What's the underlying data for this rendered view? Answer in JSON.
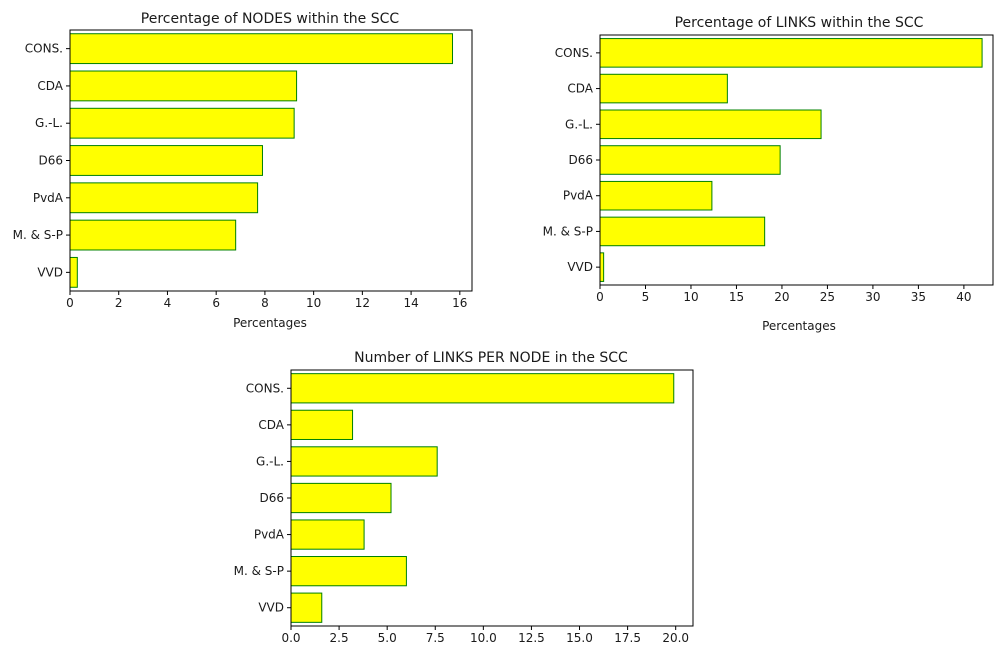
{
  "chart_data": [
    {
      "type": "bar",
      "orientation": "horizontal",
      "title": "Percentage of NODES within the SCC",
      "xlabel": "Percentages",
      "ylabel": "",
      "categories": [
        "CONS.",
        "CDA",
        "G.-L.",
        "D66",
        "PvdA",
        "M. & S-P",
        "VVD"
      ],
      "values": [
        15.7,
        9.3,
        9.2,
        7.9,
        7.7,
        6.8,
        0.3
      ],
      "xlim": [
        0,
        16.5
      ],
      "xticks": [
        0,
        2,
        4,
        6,
        8,
        10,
        12,
        14,
        16
      ],
      "xtick_labels": [
        "0",
        "2",
        "4",
        "6",
        "8",
        "10",
        "12",
        "14",
        "16"
      ],
      "grid": false,
      "bar_color": "#ffff00",
      "edge_color": "#008000"
    },
    {
      "type": "bar",
      "orientation": "horizontal",
      "title": "Percentage of LINKS within the SCC",
      "xlabel": "Percentages",
      "ylabel": "",
      "categories": [
        "CONS.",
        "CDA",
        "G.-L.",
        "D66",
        "PvdA",
        "M. & S-P",
        "VVD"
      ],
      "values": [
        42.0,
        14.0,
        24.3,
        19.8,
        12.3,
        18.1,
        0.4
      ],
      "xlim": [
        0,
        43.2
      ],
      "xticks": [
        0,
        5,
        10,
        15,
        20,
        25,
        30,
        35,
        40
      ],
      "xtick_labels": [
        "0",
        "5",
        "10",
        "15",
        "20",
        "25",
        "30",
        "35",
        "40"
      ],
      "grid": false,
      "bar_color": "#ffff00",
      "edge_color": "#008000"
    },
    {
      "type": "bar",
      "orientation": "horizontal",
      "title": "Number of LINKS PER NODE in the SCC",
      "xlabel": "",
      "ylabel": "",
      "categories": [
        "CONS.",
        "CDA",
        "G.-L.",
        "D66",
        "PvdA",
        "M. & S-P",
        "VVD"
      ],
      "values": [
        19.9,
        3.2,
        7.6,
        5.2,
        3.8,
        6.0,
        1.6
      ],
      "xlim": [
        0,
        20.9
      ],
      "xticks": [
        0,
        2.5,
        5,
        7.5,
        10,
        12.5,
        15,
        17.5,
        20
      ],
      "xtick_labels": [
        "0.0",
        "2.5",
        "5.0",
        "7.5",
        "10.0",
        "12.5",
        "15.0",
        "17.5",
        "20.0"
      ],
      "grid": false,
      "bar_color": "#ffff00",
      "edge_color": "#008000"
    }
  ]
}
